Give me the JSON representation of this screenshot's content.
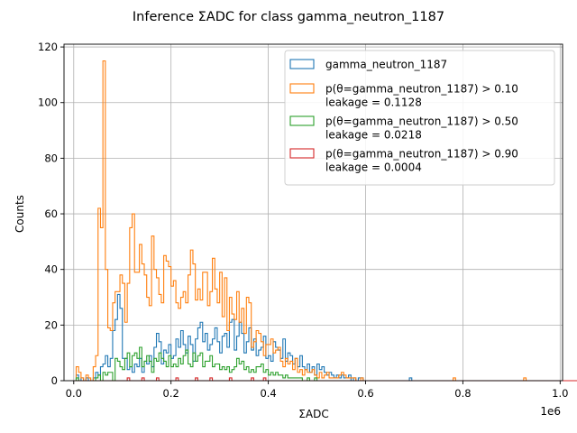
{
  "chart_data": {
    "type": "histogram-step",
    "title": "Inference ΣADC for class gamma_neutron_1187",
    "xlabel": "ΣADC",
    "ylabel": "Counts",
    "x_offset_label": "1e6",
    "xlim": [
      -0.02,
      1.005
    ],
    "ylim": [
      0,
      121
    ],
    "x_unit": 1000000,
    "xticks": [
      0.0,
      0.2,
      0.4,
      0.6,
      0.8,
      1.0
    ],
    "xtick_labels": [
      "0.0",
      "0.2",
      "0.4",
      "0.6",
      "0.8",
      "1.0"
    ],
    "yticks": [
      0,
      20,
      40,
      60,
      80,
      100,
      120
    ],
    "ytick_labels": [
      "0",
      "20",
      "40",
      "60",
      "80",
      "100",
      "120"
    ],
    "grid": true,
    "legend_position": "upper-right",
    "bin_start": 0.0,
    "bin_width": 0.005,
    "series": [
      {
        "name": "gamma_neutron_1187",
        "color": "#1f77b4",
        "counts": [
          0,
          2,
          0,
          1,
          0,
          1,
          0,
          0,
          1,
          3,
          2,
          5,
          6,
          9,
          5,
          8,
          18,
          22,
          31,
          26,
          8,
          8,
          4,
          5,
          3,
          6,
          5,
          8,
          3,
          7,
          6,
          9,
          5,
          12,
          17,
          14,
          6,
          11,
          10,
          13,
          8,
          9,
          15,
          12,
          18,
          13,
          10,
          16,
          13,
          7,
          15,
          19,
          21,
          14,
          17,
          11,
          13,
          15,
          19,
          14,
          10,
          16,
          17,
          12,
          21,
          22,
          11,
          16,
          21,
          17,
          10,
          14,
          19,
          11,
          15,
          9,
          11,
          12,
          16,
          8,
          9,
          7,
          14,
          12,
          11,
          8,
          15,
          7,
          10,
          9,
          6,
          8,
          5,
          9,
          5,
          4,
          6,
          3,
          5,
          2,
          6,
          4,
          5,
          3,
          2,
          3,
          2,
          1,
          2,
          1,
          2,
          1,
          1,
          2,
          0,
          1,
          0,
          1,
          1,
          0,
          0,
          0,
          0,
          0,
          0,
          0,
          0,
          0,
          0,
          0,
          0,
          0,
          0,
          0,
          0,
          0,
          0,
          0,
          1,
          0,
          0,
          0,
          0,
          0,
          0,
          0,
          0,
          0,
          0,
          0,
          0,
          0,
          0,
          0,
          0,
          0,
          0,
          0,
          0,
          0,
          0,
          0,
          0,
          0,
          0,
          0,
          0,
          0,
          0,
          0,
          0,
          0,
          0,
          0,
          0,
          0,
          0,
          0,
          0,
          0,
          0,
          0,
          0,
          0,
          0,
          0,
          0,
          0,
          0,
          0,
          0,
          0,
          0,
          0,
          0,
          0,
          0,
          0,
          0,
          0,
          0,
          0,
          0,
          0,
          0,
          0,
          0,
          0
        ]
      },
      {
        "name": "p(θ=gamma_neutron_1187) > 0.10",
        "leakage": "leakage = 0.1128",
        "color": "#ff7f0e",
        "counts": [
          0,
          5,
          3,
          1,
          0,
          2,
          1,
          0,
          5,
          9,
          62,
          55,
          115,
          40,
          19,
          18,
          28,
          32,
          32,
          38,
          35,
          21,
          35,
          55,
          60,
          39,
          39,
          49,
          42,
          38,
          30,
          27,
          52,
          40,
          37,
          31,
          28,
          45,
          43,
          41,
          34,
          36,
          28,
          26,
          30,
          32,
          28,
          38,
          47,
          42,
          29,
          33,
          29,
          39,
          39,
          27,
          32,
          44,
          33,
          28,
          39,
          23,
          37,
          18,
          30,
          24,
          22,
          32,
          21,
          26,
          17,
          30,
          28,
          12,
          14,
          18,
          17,
          14,
          9,
          13,
          13,
          15,
          10,
          11,
          12,
          7,
          5,
          8,
          6,
          7,
          4,
          8,
          3,
          4,
          2,
          4,
          3,
          3,
          4,
          2,
          1,
          3,
          1,
          2,
          3,
          1,
          1,
          1,
          1,
          2,
          3,
          2,
          1,
          1,
          1,
          1,
          0,
          0,
          1,
          0,
          0,
          0,
          0,
          0,
          0,
          0,
          0,
          0,
          0,
          0,
          0,
          0,
          0,
          0,
          0,
          0,
          0,
          0,
          0,
          0,
          0,
          0,
          0,
          0,
          0,
          0,
          0,
          0,
          0,
          0,
          0,
          0,
          0,
          0,
          0,
          0,
          1,
          0,
          0,
          0,
          0,
          0,
          0,
          0,
          0,
          0,
          0,
          0,
          0,
          0,
          0,
          0,
          0,
          0,
          0,
          0,
          0,
          0,
          0,
          0,
          0,
          0,
          0,
          0,
          0,
          1,
          0,
          0,
          0,
          0,
          0,
          0,
          0,
          0,
          0,
          0,
          0,
          0,
          0,
          0,
          0,
          0,
          0,
          0,
          0,
          0,
          0,
          0,
          0,
          0,
          0,
          0,
          0,
          1,
          0,
          0,
          0,
          1,
          0,
          0,
          0,
          0,
          0,
          0
        ]
      },
      {
        "name": "p(θ=gamma_neutron_1187) > 0.50",
        "leakage": "leakage = 0.0218",
        "color": "#2ca02c",
        "counts": [
          0,
          1,
          0,
          0,
          0,
          0,
          0,
          0,
          0,
          1,
          2,
          0,
          3,
          2,
          3,
          3,
          0,
          8,
          7,
          5,
          4,
          8,
          10,
          5,
          9,
          10,
          8,
          12,
          5,
          7,
          9,
          7,
          3,
          8,
          7,
          10,
          8,
          7,
          5,
          9,
          5,
          6,
          5,
          8,
          6,
          9,
          11,
          6,
          5,
          10,
          7,
          9,
          10,
          5,
          7,
          7,
          9,
          5,
          6,
          6,
          4,
          5,
          4,
          5,
          3,
          4,
          5,
          8,
          6,
          7,
          4,
          5,
          3,
          4,
          3,
          5,
          5,
          6,
          3,
          4,
          2,
          3,
          2,
          3,
          2,
          2,
          1,
          2,
          1,
          1,
          1,
          1,
          1,
          1,
          0,
          0,
          1,
          0,
          0,
          1,
          0,
          0,
          0,
          0,
          0,
          0,
          0,
          0,
          0,
          0,
          0,
          0,
          0,
          0,
          0,
          0,
          0,
          0,
          0,
          0,
          0,
          0,
          0,
          0,
          0,
          0,
          0,
          0,
          0,
          0,
          0,
          0,
          0,
          0,
          0,
          0,
          0,
          0,
          0,
          0,
          0,
          0,
          0,
          0,
          0,
          0,
          0,
          0,
          0,
          0,
          0,
          0,
          0,
          0,
          0,
          0,
          0,
          0,
          0,
          0,
          0,
          0,
          0,
          0,
          0,
          0,
          0,
          0,
          0,
          0,
          0,
          0,
          0,
          0,
          0,
          0,
          0,
          0,
          0,
          0,
          0,
          0,
          0,
          0,
          0,
          0,
          0,
          0,
          0,
          0,
          0,
          0,
          0,
          0,
          0,
          0,
          0,
          0,
          0,
          0,
          0,
          0,
          0,
          0,
          0,
          0,
          0,
          0,
          0,
          0,
          0,
          0,
          0,
          0
        ]
      },
      {
        "name": "p(θ=gamma_neutron_1187) > 0.90",
        "leakage": "leakage = 0.0004",
        "color": "#d62728",
        "counts": [
          0,
          0,
          0,
          0,
          0,
          0,
          0,
          0,
          0,
          0,
          0,
          0,
          0,
          0,
          0,
          0,
          0,
          0,
          0,
          0,
          0,
          0,
          1,
          0,
          0,
          0,
          0,
          0,
          1,
          0,
          0,
          0,
          0,
          0,
          1,
          0,
          0,
          0,
          0,
          0,
          0,
          0,
          1,
          0,
          0,
          0,
          0,
          0,
          0,
          0,
          1,
          0,
          0,
          0,
          0,
          0,
          1,
          0,
          0,
          0,
          0,
          0,
          0,
          0,
          1,
          0,
          0,
          0,
          0,
          0,
          0,
          0,
          0,
          1,
          0,
          0,
          0,
          0,
          1,
          0,
          0,
          0,
          0,
          0,
          0,
          0,
          0,
          0,
          0,
          0,
          0,
          0,
          0,
          0,
          0,
          0,
          0,
          0,
          0,
          0,
          0,
          0,
          0,
          0,
          0,
          0,
          0,
          0,
          0,
          0,
          0,
          0,
          0,
          0,
          0,
          0,
          0,
          0,
          0,
          0,
          0,
          0,
          0,
          0,
          0,
          0,
          0,
          0,
          0,
          0,
          0,
          0,
          0,
          0,
          0,
          0,
          0,
          0,
          0,
          0,
          0,
          0,
          0,
          0,
          0,
          0,
          0,
          0,
          0,
          0,
          0,
          0,
          0,
          0,
          0,
          0,
          0,
          0,
          0,
          0,
          0,
          0,
          0,
          0,
          0,
          0,
          0,
          0,
          0,
          0,
          0,
          0,
          0,
          0,
          0,
          0,
          0,
          0,
          0,
          0,
          0,
          0,
          0,
          0,
          0,
          0,
          0,
          0,
          0,
          0,
          0,
          0,
          0,
          0,
          0,
          0,
          0,
          0,
          0,
          0,
          0,
          0,
          0,
          0,
          0,
          0,
          0,
          0,
          0,
          0,
          0,
          0,
          0,
          0
        ]
      }
    ]
  }
}
